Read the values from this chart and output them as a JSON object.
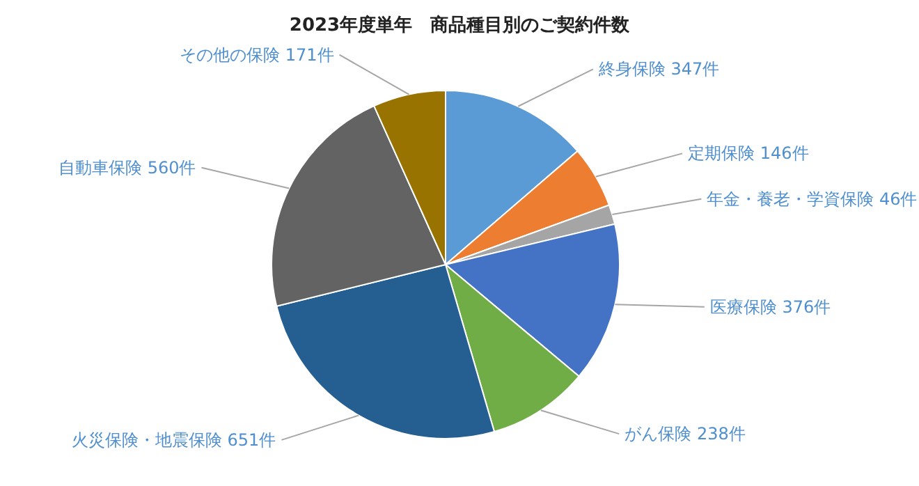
{
  "chart_data": {
    "type": "pie",
    "title": "2023年度単年　商品種目別のご契約件数",
    "categories": [
      "終身保険",
      "定期保険",
      "年金・養老・学資保険",
      "医療保険",
      "がん保険",
      "火災保険・地震保険",
      "自動車保険",
      "その他の保険"
    ],
    "values": [
      347,
      146,
      46,
      376,
      238,
      651,
      560,
      171
    ],
    "value_labels": [
      "347件",
      "146件",
      "46件",
      "376件",
      "238件",
      "651件",
      "560件",
      "171件"
    ],
    "colors": [
      "#5b9bd5",
      "#ed7d31",
      "#a5a5a5",
      "#4472c4",
      "#70ad47",
      "#255e91",
      "#636363",
      "#997300"
    ]
  }
}
